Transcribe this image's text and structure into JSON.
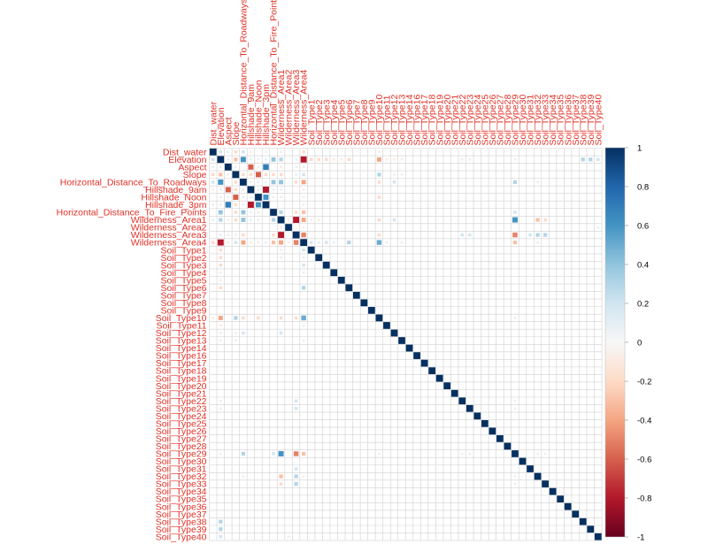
{
  "chart_data": {
    "type": "heatmap",
    "title": "",
    "variables": [
      "Dist_water",
      "Elevation",
      "Aspect",
      "Slope",
      "Horizontal_Distance_To_Roadways",
      "Hillshade_9am",
      "Hillshade_Noon",
      "Hillshade_3pm",
      "Horizontal_Distance_To_Fire_Points",
      "Wilderness_Area1",
      "Wilderness_Area2",
      "Wilderness_Area3",
      "Wilderness_Area4",
      "Soil_Type1",
      "Soil_Type2",
      "Soil_Type3",
      "Soil_Type4",
      "Soil_Type5",
      "Soil_Type6",
      "Soil_Type7",
      "Soil_Type8",
      "Soil_Type9",
      "Soil_Type10",
      "Soil_Type11",
      "Soil_Type12",
      "Soil_Type13",
      "Soil_Type14",
      "Soil_Type16",
      "Soil_Type17",
      "Soil_Type18",
      "Soil_Type19",
      "Soil_Type20",
      "Soil_Type21",
      "Soil_Type22",
      "Soil_Type23",
      "Soil_Type24",
      "Soil_Type25",
      "Soil_Type26",
      "Soil_Type27",
      "Soil_Type28",
      "Soil_Type29",
      "Soil_Type30",
      "Soil_Type31",
      "Soil_Type32",
      "Soil_Type33",
      "Soil_Type34",
      "Soil_Type35",
      "Soil_Type36",
      "Soil_Type37",
      "Soil_Type38",
      "Soil_Type39",
      "Soil_Type40"
    ],
    "correlations": [
      [
        "Dist_water",
        "Elevation",
        0.2
      ],
      [
        "Dist_water",
        "Aspect",
        0.1
      ],
      [
        "Dist_water",
        "Slope",
        -0.2
      ],
      [
        "Dist_water",
        "Horizontal_Distance_To_Roadways",
        0.2
      ],
      [
        "Dist_water",
        "Hillshade_9am",
        -0.1
      ],
      [
        "Dist_water",
        "Hillshade_3pm",
        0.1
      ],
      [
        "Dist_water",
        "Wilderness_Area1",
        0.1
      ],
      [
        "Dist_water",
        "Wilderness_Area4",
        -0.2
      ],
      [
        "Dist_water",
        "Soil_Type10",
        -0.1
      ],
      [
        "Elevation",
        "Aspect",
        0.1
      ],
      [
        "Elevation",
        "Slope",
        -0.3
      ],
      [
        "Elevation",
        "Horizontal_Distance_To_Roadways",
        0.6
      ],
      [
        "Elevation",
        "Hillshade_9am",
        0.1
      ],
      [
        "Elevation",
        "Hillshade_Noon",
        0.1
      ],
      [
        "Elevation",
        "Hillshade_3pm",
        0.1
      ],
      [
        "Elevation",
        "Horizontal_Distance_To_Fire_Points",
        0.4
      ],
      [
        "Elevation",
        "Wilderness_Area1",
        0.3
      ],
      [
        "Elevation",
        "Wilderness_Area3",
        0.1
      ],
      [
        "Elevation",
        "Wilderness_Area4",
        -0.8
      ],
      [
        "Elevation",
        "Soil_Type1",
        -0.2
      ],
      [
        "Elevation",
        "Soil_Type2",
        -0.2
      ],
      [
        "Elevation",
        "Soil_Type3",
        -0.2
      ],
      [
        "Elevation",
        "Soil_Type4",
        -0.1
      ],
      [
        "Elevation",
        "Soil_Type5",
        -0.1
      ],
      [
        "Elevation",
        "Soil_Type6",
        -0.2
      ],
      [
        "Elevation",
        "Soil_Type10",
        -0.4
      ],
      [
        "Elevation",
        "Soil_Type11",
        -0.1
      ],
      [
        "Elevation",
        "Soil_Type12",
        -0.1
      ],
      [
        "Elevation",
        "Soil_Type13",
        0.1
      ],
      [
        "Elevation",
        "Soil_Type22",
        0.1
      ],
      [
        "Elevation",
        "Soil_Type23",
        0.1
      ],
      [
        "Elevation",
        "Soil_Type29",
        0.1
      ],
      [
        "Elevation",
        "Soil_Type38",
        0.3
      ],
      [
        "Elevation",
        "Soil_Type39",
        0.3
      ],
      [
        "Elevation",
        "Soil_Type40",
        0.2
      ],
      [
        "Aspect",
        "Slope",
        0.1
      ],
      [
        "Aspect",
        "Hillshade_9am",
        -0.6
      ],
      [
        "Aspect",
        "Hillshade_Noon",
        0.1
      ],
      [
        "Aspect",
        "Hillshade_3pm",
        0.7
      ],
      [
        "Aspect",
        "Wilderness_Area1",
        -0.1
      ],
      [
        "Aspect",
        "Wilderness_Area3",
        0.1
      ],
      [
        "Aspect",
        "Wilderness_Area4",
        -0.1
      ],
      [
        "Slope",
        "Horizontal_Distance_To_Roadways",
        -0.2
      ],
      [
        "Slope",
        "Hillshade_9am",
        -0.2
      ],
      [
        "Slope",
        "Hillshade_Noon",
        -0.6
      ],
      [
        "Slope",
        "Hillshade_3pm",
        -0.2
      ],
      [
        "Slope",
        "Horizontal_Distance_To_Fire_Points",
        -0.2
      ],
      [
        "Slope",
        "Wilderness_Area1",
        -0.2
      ],
      [
        "Slope",
        "Wilderness_Area3",
        0.1
      ],
      [
        "Slope",
        "Wilderness_Area4",
        0.2
      ],
      [
        "Slope",
        "Soil_Type10",
        0.3
      ],
      [
        "Slope",
        "Soil_Type12",
        -0.1
      ],
      [
        "Slope",
        "Soil_Type13",
        0.1
      ],
      [
        "Horizontal_Distance_To_Roadways",
        "Hillshade_9am",
        0.1
      ],
      [
        "Horizontal_Distance_To_Roadways",
        "Hillshade_Noon",
        0.1
      ],
      [
        "Horizontal_Distance_To_Roadways",
        "Hillshade_3pm",
        0.1
      ],
      [
        "Horizontal_Distance_To_Roadways",
        "Horizontal_Distance_To_Fire_Points",
        0.4
      ],
      [
        "Horizontal_Distance_To_Roadways",
        "Wilderness_Area1",
        0.4
      ],
      [
        "Horizontal_Distance_To_Roadways",
        "Wilderness_Area3",
        -0.2
      ],
      [
        "Horizontal_Distance_To_Roadways",
        "Wilderness_Area4",
        -0.4
      ],
      [
        "Horizontal_Distance_To_Roadways",
        "Soil_Type10",
        -0.2
      ],
      [
        "Horizontal_Distance_To_Roadways",
        "Soil_Type12",
        0.2
      ],
      [
        "Horizontal_Distance_To_Roadways",
        "Soil_Type29",
        0.3
      ],
      [
        "Horizontal_Distance_To_Roadways",
        "Soil_Type32",
        -0.1
      ],
      [
        "Hillshade_9am",
        "Hillshade_Noon",
        0.1
      ],
      [
        "Hillshade_9am",
        "Hillshade_3pm",
        -0.8
      ],
      [
        "Hillshade_9am",
        "Horizontal_Distance_To_Fire_Points",
        0.1
      ],
      [
        "Hillshade_9am",
        "Wilderness_Area1",
        0.1
      ],
      [
        "Hillshade_9am",
        "Wilderness_Area4",
        -0.1
      ],
      [
        "Hillshade_Noon",
        "Hillshade_3pm",
        0.6
      ],
      [
        "Hillshade_Noon",
        "Horizontal_Distance_To_Fire_Points",
        0.1
      ],
      [
        "Hillshade_Noon",
        "Wilderness_Area1",
        0.1
      ],
      [
        "Hillshade_Noon",
        "Wilderness_Area4",
        -0.1
      ],
      [
        "Hillshade_Noon",
        "Soil_Type10",
        -0.2
      ],
      [
        "Hillshade_3pm",
        "Wilderness_Area4",
        0.1
      ],
      [
        "Horizontal_Distance_To_Fire_Points",
        "Wilderness_Area1",
        0.3
      ],
      [
        "Horizontal_Distance_To_Fire_Points",
        "Wilderness_Area3",
        -0.2
      ],
      [
        "Horizontal_Distance_To_Fire_Points",
        "Wilderness_Area4",
        -0.3
      ],
      [
        "Horizontal_Distance_To_Fire_Points",
        "Soil_Type29",
        0.2
      ],
      [
        "Wilderness_Area1",
        "Wilderness_Area2",
        -0.1
      ],
      [
        "Wilderness_Area1",
        "Wilderness_Area3",
        -0.8
      ],
      [
        "Wilderness_Area1",
        "Wilderness_Area4",
        -0.4
      ],
      [
        "Wilderness_Area1",
        "Soil_Type1",
        -0.1
      ],
      [
        "Wilderness_Area1",
        "Soil_Type2",
        -0.1
      ],
      [
        "Wilderness_Area1",
        "Soil_Type10",
        -0.2
      ],
      [
        "Wilderness_Area1",
        "Soil_Type12",
        0.2
      ],
      [
        "Wilderness_Area1",
        "Soil_Type29",
        0.6
      ],
      [
        "Wilderness_Area1",
        "Soil_Type32",
        -0.3
      ],
      [
        "Wilderness_Area1",
        "Soil_Type33",
        -0.2
      ],
      [
        "Wilderness_Area2",
        "Wilderness_Area4",
        -0.1
      ],
      [
        "Wilderness_Area2",
        "Soil_Type40",
        0.1
      ],
      [
        "Wilderness_Area3",
        "Wilderness_Area4",
        -0.5
      ],
      [
        "Wilderness_Area3",
        "Soil_Type10",
        -0.2
      ],
      [
        "Wilderness_Area3",
        "Soil_Type22",
        0.2
      ],
      [
        "Wilderness_Area3",
        "Soil_Type23",
        0.2
      ],
      [
        "Wilderness_Area3",
        "Soil_Type29",
        -0.5
      ],
      [
        "Wilderness_Area3",
        "Soil_Type31",
        0.2
      ],
      [
        "Wilderness_Area3",
        "Soil_Type32",
        0.3
      ],
      [
        "Wilderness_Area3",
        "Soil_Type33",
        0.3
      ],
      [
        "Wilderness_Area4",
        "Soil_Type1",
        0.2
      ],
      [
        "Wilderness_Area4",
        "Soil_Type2",
        0.1
      ],
      [
        "Wilderness_Area4",
        "Soil_Type3",
        0.2
      ],
      [
        "Wilderness_Area4",
        "Soil_Type4",
        0.1
      ],
      [
        "Wilderness_Area4",
        "Soil_Type6",
        0.3
      ],
      [
        "Wilderness_Area4",
        "Soil_Type10",
        0.5
      ],
      [
        "Wilderness_Area4",
        "Soil_Type11",
        0.1
      ],
      [
        "Wilderness_Area4",
        "Soil_Type13",
        0.1
      ],
      [
        "Wilderness_Area4",
        "Soil_Type29",
        -0.3
      ],
      [
        "Wilderness_Area4",
        "Soil_Type32",
        -0.1
      ],
      [
        "Soil_Type10",
        "Soil_Type29",
        -0.1
      ],
      [
        "Soil_Type22",
        "Soil_Type29",
        -0.1
      ],
      [
        "Soil_Type23",
        "Soil_Type29",
        -0.1
      ],
      [
        "Soil_Type29",
        "Soil_Type32",
        -0.1
      ],
      [
        "Soil_Type29",
        "Soil_Type33",
        -0.1
      ]
    ],
    "colorbar": {
      "min": -1,
      "max": 1,
      "ticks": [
        "1",
        "0.8",
        "0.6",
        "0.4",
        "0.2",
        "0",
        "-0.2",
        "-0.4",
        "-0.6",
        "-0.8",
        "-1"
      ]
    },
    "colors": {
      "high": "#053061",
      "mid": "#f7f7f7",
      "low": "#67001f",
      "label": "#e03127",
      "grid": "#d0d0d0"
    }
  }
}
